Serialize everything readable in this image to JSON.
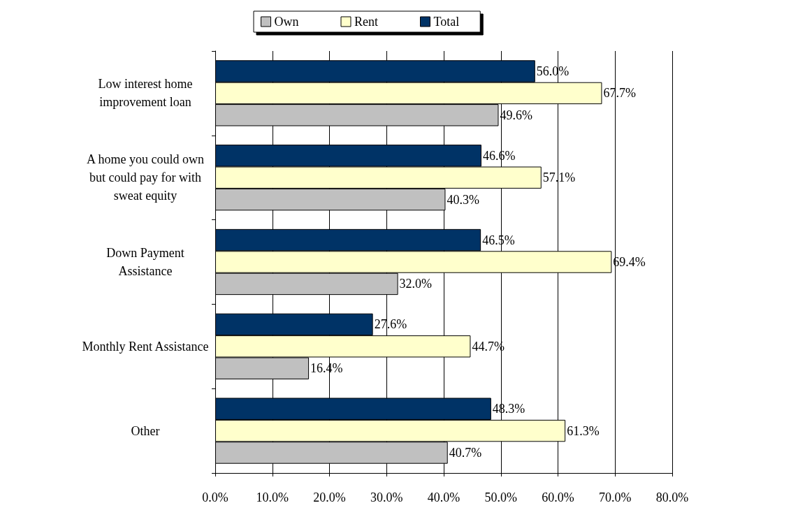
{
  "chart_data": {
    "type": "bar",
    "orientation": "horizontal",
    "categories": [
      "Low interest home\nimprovement loan",
      "A home you could own\nbut could pay for with\nsweat equity",
      "Down Payment\nAssistance",
      "Monthly Rent Assistance",
      "Other"
    ],
    "series": [
      {
        "name": "Own",
        "color": "#c0c0c0",
        "values": [
          49.6,
          40.3,
          32.0,
          16.4,
          40.7
        ],
        "value_labels": [
          "49.6%",
          "40.3%",
          "32.0%",
          "16.4%",
          "40.7%"
        ]
      },
      {
        "name": "Rent",
        "color": "#ffffcc",
        "values": [
          67.7,
          57.1,
          69.4,
          44.7,
          61.3
        ],
        "value_labels": [
          "67.7%",
          "57.1%",
          "69.4%",
          "44.7%",
          "61.3%"
        ]
      },
      {
        "name": "Total",
        "color": "#003366",
        "values": [
          56.0,
          46.6,
          46.5,
          27.6,
          48.3
        ],
        "value_labels": [
          "56.0%",
          "46.6%",
          "46.5%",
          "27.6%",
          "48.3%"
        ]
      }
    ],
    "xlim": [
      0,
      80
    ],
    "xticks": [
      {
        "value": 0,
        "label": "0.0%"
      },
      {
        "value": 10,
        "label": "10.0%"
      },
      {
        "value": 20,
        "label": "20.0%"
      },
      {
        "value": 30,
        "label": "30.0%"
      },
      {
        "value": 40,
        "label": "40.0%"
      },
      {
        "value": 50,
        "label": "50.0%"
      },
      {
        "value": 60,
        "label": "60.0%"
      },
      {
        "value": 70,
        "label": "70.0%"
      },
      {
        "value": 80,
        "label": "80.0%"
      }
    ],
    "grid": "x",
    "legend": "top"
  }
}
